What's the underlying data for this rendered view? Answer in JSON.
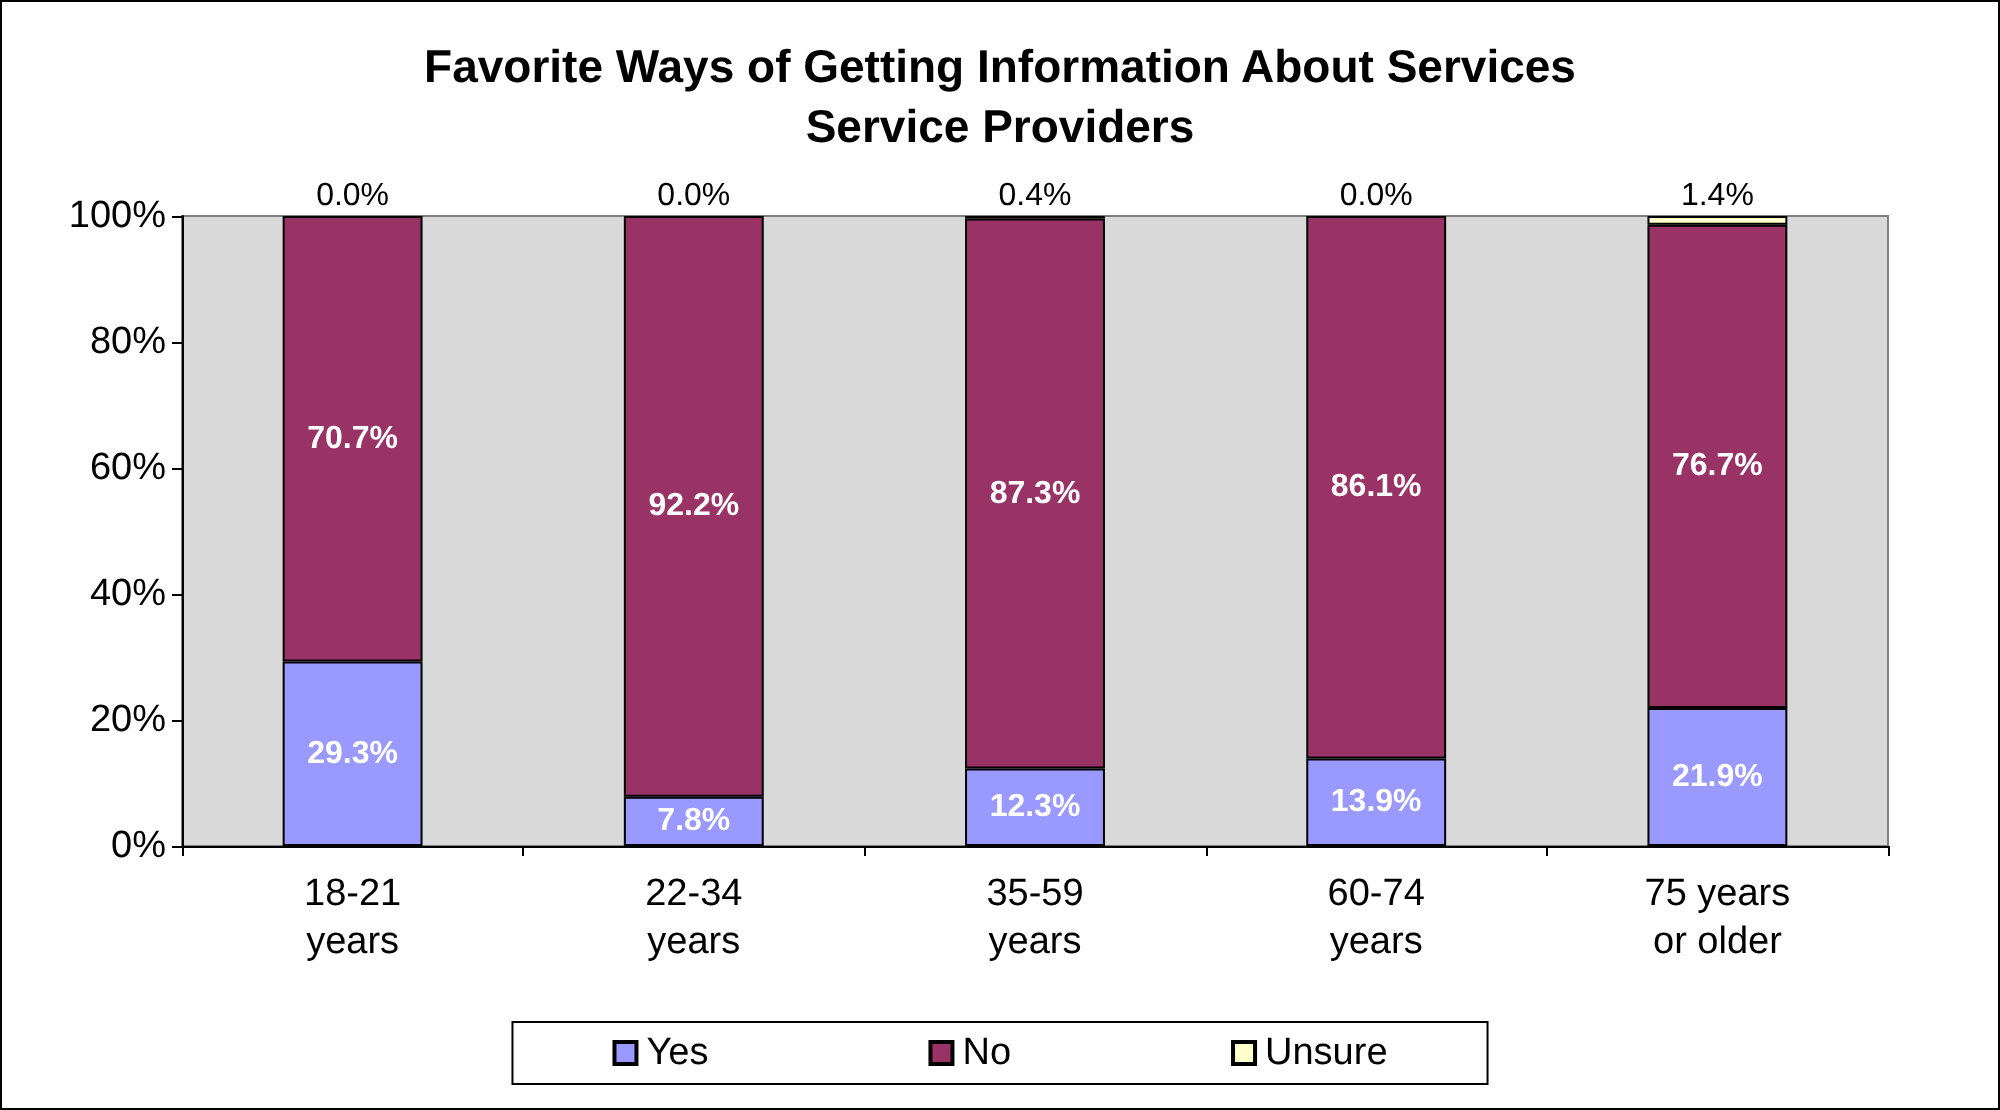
{
  "chart_data": {
    "type": "bar",
    "title": "Favorite Ways of Getting Information About Services\nService Providers",
    "categories": [
      "18-21\nyears",
      "22-34\nyears",
      "35-59\nyears",
      "60-74\nyears",
      "75 years\nor older"
    ],
    "stacked": true,
    "series": [
      {
        "name": "Yes",
        "color": "#9999ff",
        "values": [
          29.3,
          7.8,
          12.3,
          13.9,
          21.9
        ],
        "value_labels": [
          "29.3%",
          "7.8%",
          "12.3%",
          "13.9%",
          "21.9%"
        ]
      },
      {
        "name": "No",
        "color": "#993366",
        "values": [
          70.7,
          92.2,
          87.3,
          86.1,
          76.7
        ],
        "value_labels": [
          "70.7%",
          "92.2%",
          "87.3%",
          "86.1%",
          "76.7%"
        ]
      },
      {
        "name": "Unsure",
        "color": "#ffffcc",
        "values": [
          0.0,
          0.0,
          0.4,
          0.0,
          1.4
        ],
        "value_labels": [
          "0.0%",
          "0.0%",
          "0.4%",
          "0.0%",
          "1.4%"
        ]
      }
    ],
    "ylim": [
      0,
      100
    ],
    "yticks": [
      {
        "value": 0,
        "label": "0%"
      },
      {
        "value": 20,
        "label": "20%"
      },
      {
        "value": 40,
        "label": "40%"
      },
      {
        "value": 60,
        "label": "60%"
      },
      {
        "value": 80,
        "label": "80%"
      },
      {
        "value": 100,
        "label": "100%"
      }
    ],
    "grid": false,
    "legend": "bottom"
  }
}
